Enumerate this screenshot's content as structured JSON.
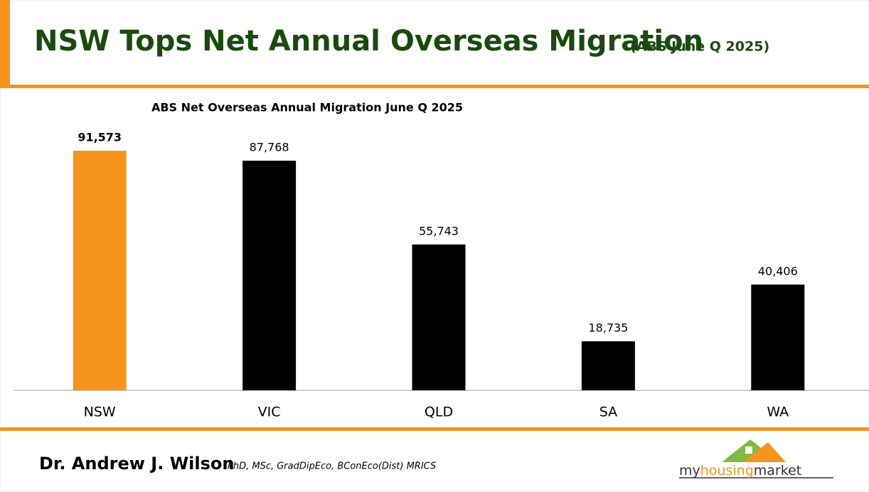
{
  "header": {
    "title": "NSW Tops Net Annual Overseas Migration",
    "subtitle": "(ABS June Q 2025)"
  },
  "chart_data": {
    "type": "bar",
    "title": "ABS Net Overseas Annual Migration June Q 2025",
    "categories": [
      "NSW",
      "VIC",
      "QLD",
      "SA",
      "WA"
    ],
    "values": [
      91573,
      87768,
      55743,
      18735,
      40406
    ],
    "value_labels": [
      "91,573",
      "87,768",
      "55,743",
      "18,735",
      "40,406"
    ],
    "colors": [
      "#f7941d",
      "#000000",
      "#000000",
      "#000000",
      "#000000"
    ],
    "ylim": [
      0,
      100000
    ]
  },
  "footer": {
    "author": "Dr. Andrew J. Wilson",
    "credentials": "PhD, MSc, GradDipEco, BConEco(Dist) MRICS",
    "logo": {
      "part1": "my",
      "part2": "housing",
      "part3": "market"
    }
  }
}
